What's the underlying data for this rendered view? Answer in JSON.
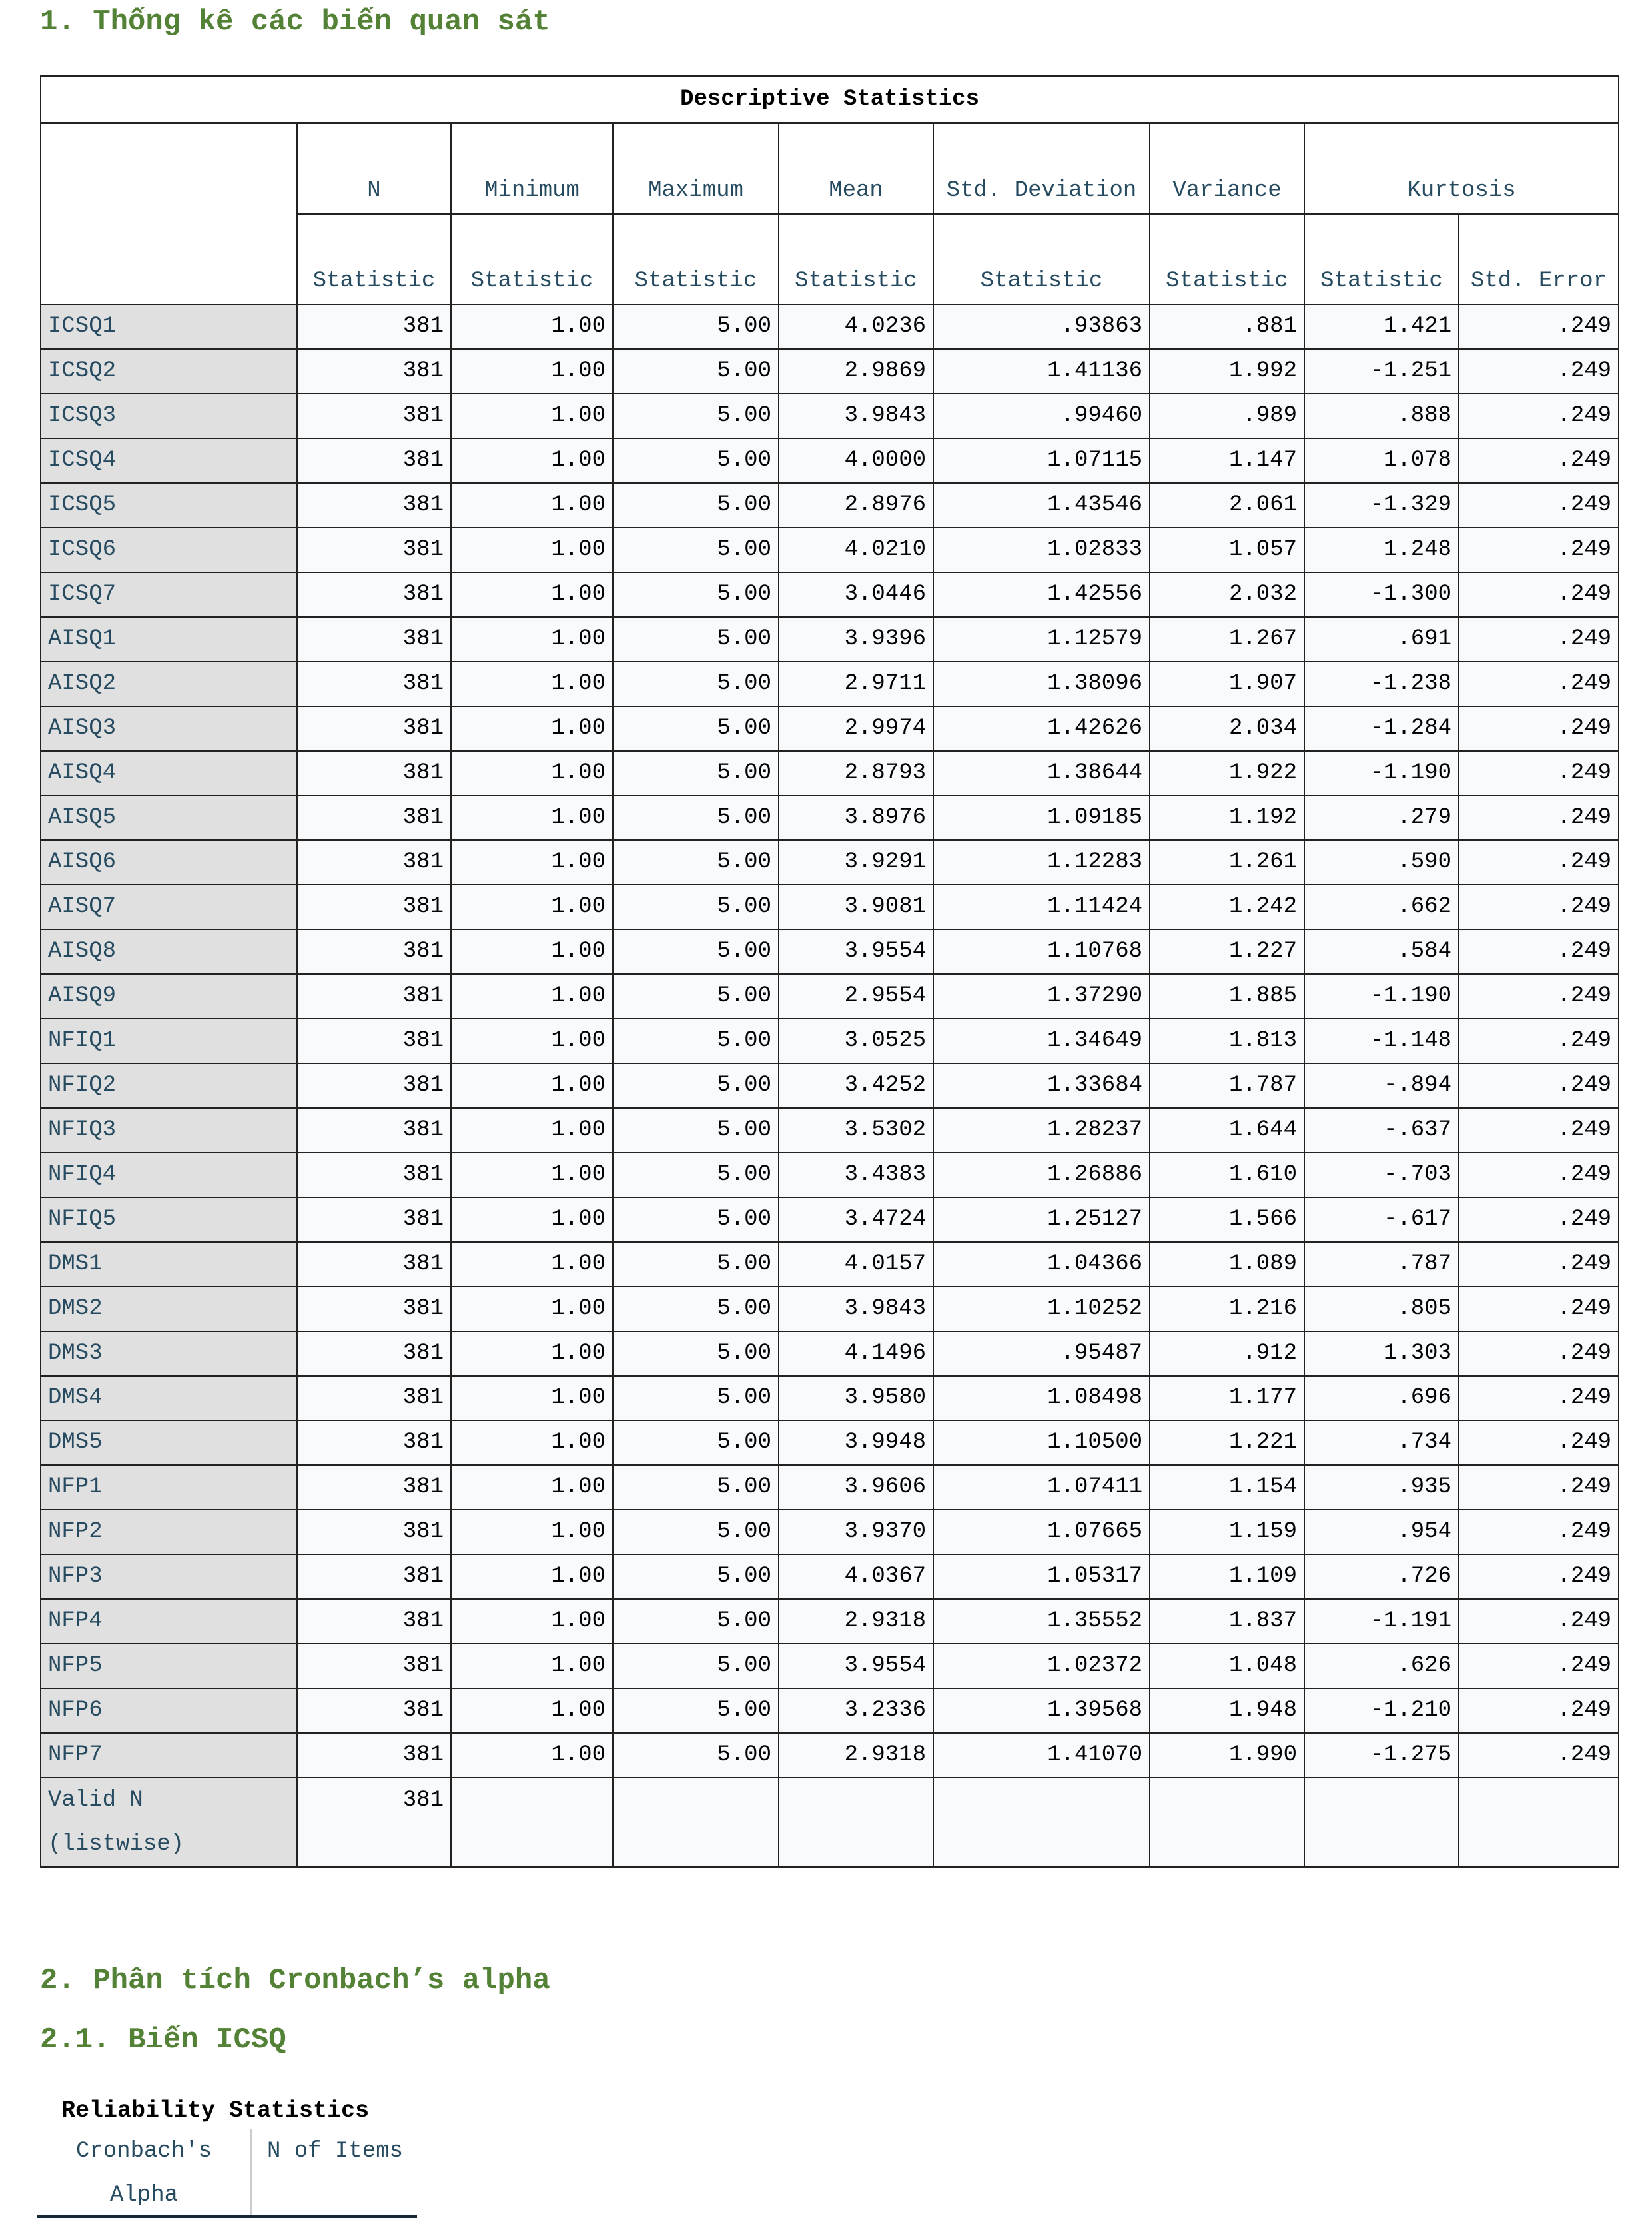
{
  "headings": {
    "h1": "1. Thống kê các biến quan sát",
    "h2": "2. Phân tích Cronbach’s alpha",
    "h21": "2.1. Biến ICSQ"
  },
  "descriptive": {
    "title": "Descriptive Statistics",
    "columns": [
      "N",
      "Minimum",
      "Maximum",
      "Mean",
      "Std. Deviation",
      "Variance",
      "Kurtosis"
    ],
    "subcolumns": [
      "Statistic",
      "Statistic",
      "Statistic",
      "Statistic",
      "Statistic",
      "Statistic",
      "Statistic",
      "Std. Error"
    ],
    "rows": [
      [
        "ICSQ1",
        "381",
        "1.00",
        "5.00",
        "4.0236",
        ".93863",
        ".881",
        "1.421",
        ".249"
      ],
      [
        "ICSQ2",
        "381",
        "1.00",
        "5.00",
        "2.9869",
        "1.41136",
        "1.992",
        "-1.251",
        ".249"
      ],
      [
        "ICSQ3",
        "381",
        "1.00",
        "5.00",
        "3.9843",
        ".99460",
        ".989",
        ".888",
        ".249"
      ],
      [
        "ICSQ4",
        "381",
        "1.00",
        "5.00",
        "4.0000",
        "1.07115",
        "1.147",
        "1.078",
        ".249"
      ],
      [
        "ICSQ5",
        "381",
        "1.00",
        "5.00",
        "2.8976",
        "1.43546",
        "2.061",
        "-1.329",
        ".249"
      ],
      [
        "ICSQ6",
        "381",
        "1.00",
        "5.00",
        "4.0210",
        "1.02833",
        "1.057",
        "1.248",
        ".249"
      ],
      [
        "ICSQ7",
        "381",
        "1.00",
        "5.00",
        "3.0446",
        "1.42556",
        "2.032",
        "-1.300",
        ".249"
      ],
      [
        "AISQ1",
        "381",
        "1.00",
        "5.00",
        "3.9396",
        "1.12579",
        "1.267",
        ".691",
        ".249"
      ],
      [
        "AISQ2",
        "381",
        "1.00",
        "5.00",
        "2.9711",
        "1.38096",
        "1.907",
        "-1.238",
        ".249"
      ],
      [
        "AISQ3",
        "381",
        "1.00",
        "5.00",
        "2.9974",
        "1.42626",
        "2.034",
        "-1.284",
        ".249"
      ],
      [
        "AISQ4",
        "381",
        "1.00",
        "5.00",
        "2.8793",
        "1.38644",
        "1.922",
        "-1.190",
        ".249"
      ],
      [
        "AISQ5",
        "381",
        "1.00",
        "5.00",
        "3.8976",
        "1.09185",
        "1.192",
        ".279",
        ".249"
      ],
      [
        "AISQ6",
        "381",
        "1.00",
        "5.00",
        "3.9291",
        "1.12283",
        "1.261",
        ".590",
        ".249"
      ],
      [
        "AISQ7",
        "381",
        "1.00",
        "5.00",
        "3.9081",
        "1.11424",
        "1.242",
        ".662",
        ".249"
      ],
      [
        "AISQ8",
        "381",
        "1.00",
        "5.00",
        "3.9554",
        "1.10768",
        "1.227",
        ".584",
        ".249"
      ],
      [
        "AISQ9",
        "381",
        "1.00",
        "5.00",
        "2.9554",
        "1.37290",
        "1.885",
        "-1.190",
        ".249"
      ],
      [
        "NFIQ1",
        "381",
        "1.00",
        "5.00",
        "3.0525",
        "1.34649",
        "1.813",
        "-1.148",
        ".249"
      ],
      [
        "NFIQ2",
        "381",
        "1.00",
        "5.00",
        "3.4252",
        "1.33684",
        "1.787",
        "-.894",
        ".249"
      ],
      [
        "NFIQ3",
        "381",
        "1.00",
        "5.00",
        "3.5302",
        "1.28237",
        "1.644",
        "-.637",
        ".249"
      ],
      [
        "NFIQ4",
        "381",
        "1.00",
        "5.00",
        "3.4383",
        "1.26886",
        "1.610",
        "-.703",
        ".249"
      ],
      [
        "NFIQ5",
        "381",
        "1.00",
        "5.00",
        "3.4724",
        "1.25127",
        "1.566",
        "-.617",
        ".249"
      ],
      [
        "DMS1",
        "381",
        "1.00",
        "5.00",
        "4.0157",
        "1.04366",
        "1.089",
        ".787",
        ".249"
      ],
      [
        "DMS2",
        "381",
        "1.00",
        "5.00",
        "3.9843",
        "1.10252",
        "1.216",
        ".805",
        ".249"
      ],
      [
        "DMS3",
        "381",
        "1.00",
        "5.00",
        "4.1496",
        ".95487",
        ".912",
        "1.303",
        ".249"
      ],
      [
        "DMS4",
        "381",
        "1.00",
        "5.00",
        "3.9580",
        "1.08498",
        "1.177",
        ".696",
        ".249"
      ],
      [
        "DMS5",
        "381",
        "1.00",
        "5.00",
        "3.9948",
        "1.10500",
        "1.221",
        ".734",
        ".249"
      ],
      [
        "NFP1",
        "381",
        "1.00",
        "5.00",
        "3.9606",
        "1.07411",
        "1.154",
        ".935",
        ".249"
      ],
      [
        "NFP2",
        "381",
        "1.00",
        "5.00",
        "3.9370",
        "1.07665",
        "1.159",
        ".954",
        ".249"
      ],
      [
        "NFP3",
        "381",
        "1.00",
        "5.00",
        "4.0367",
        "1.05317",
        "1.109",
        ".726",
        ".249"
      ],
      [
        "NFP4",
        "381",
        "1.00",
        "5.00",
        "2.9318",
        "1.35552",
        "1.837",
        "-1.191",
        ".249"
      ],
      [
        "NFP5",
        "381",
        "1.00",
        "5.00",
        "3.9554",
        "1.02372",
        "1.048",
        ".626",
        ".249"
      ],
      [
        "NFP6",
        "381",
        "1.00",
        "5.00",
        "3.2336",
        "1.39568",
        "1.948",
        "-1.210",
        ".249"
      ],
      [
        "NFP7",
        "381",
        "1.00",
        "5.00",
        "2.9318",
        "1.41070",
        "1.990",
        "-1.275",
        ".249"
      ]
    ],
    "valid_row": [
      "Valid N (listwise)",
      "381",
      "",
      "",
      "",
      "",
      "",
      "",
      ""
    ]
  },
  "reliability": {
    "title": "Reliability Statistics",
    "col1": "Cronbach's Alpha",
    "col2": "N of Items"
  }
}
